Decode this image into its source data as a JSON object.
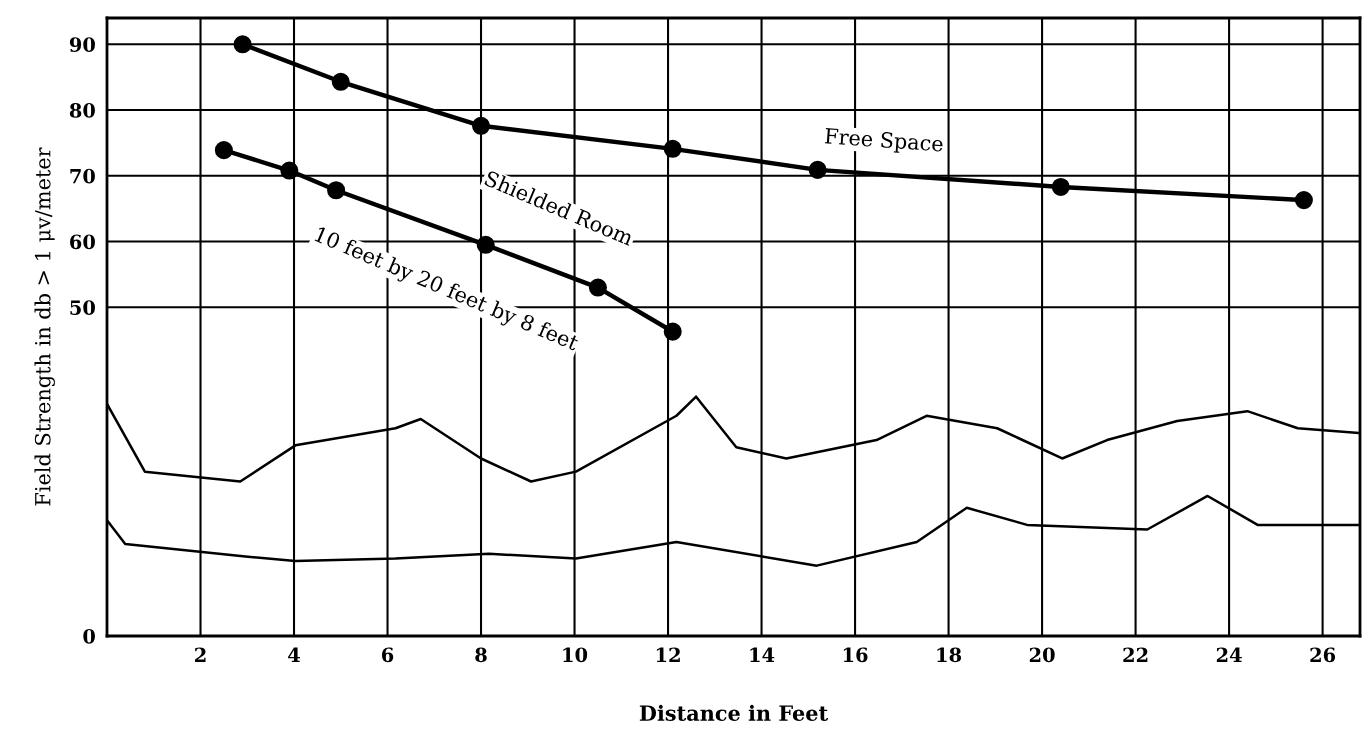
{
  "chart_data": {
    "type": "line",
    "xlabel": "Distance in Feet",
    "ylabel": "Field Strength in db > 1 μv/meter",
    "xlim": [
      0,
      26.8
    ],
    "xticks": [
      2,
      4,
      6,
      8,
      10,
      12,
      14,
      16,
      18,
      20,
      22,
      24,
      26
    ],
    "ylim": [
      0,
      94
    ],
    "yticks": [
      0,
      50,
      60,
      70,
      80,
      90
    ],
    "grid": true,
    "line_style": "solid",
    "series": [
      {
        "color": "#000000",
        "marker": "circle",
        "x": [
          2.9,
          5,
          8,
          12.1,
          15.2,
          20.4,
          25.6
        ],
        "values": [
          90,
          84.3,
          77.6,
          74.1,
          70.9,
          68.3,
          66.3
        ]
      },
      {
        "color": "#000000",
        "marker": "circle",
        "x": [
          2.5,
          3.9,
          4.9,
          8.1,
          10.5,
          12.1
        ],
        "values": [
          73.9,
          70.8,
          67.8,
          59.5,
          53.0,
          46.3
        ]
      },
      {
        "color": "#000000",
        "marker": "none",
        "x": [
          0,
          0.81,
          2.85,
          4.03,
          6.17,
          6.71,
          8.0,
          9.07,
          10.03,
          12.18,
          12.6,
          13.46,
          14.53,
          16.46,
          17.53,
          19.04,
          20.43,
          21.39,
          22.89,
          24.39,
          25.47,
          26.75
        ],
        "values": [
          35.3,
          25,
          23.5,
          29,
          31.6,
          33,
          27,
          23.5,
          25,
          33.5,
          36.4,
          28.7,
          27,
          29.8,
          33.5,
          31.6,
          27,
          29.8,
          32.7,
          34.2,
          31.6,
          30.9
        ]
      },
      {
        "color": "#000000",
        "marker": "none",
        "x": [
          0,
          0.39,
          2.96,
          4.03,
          6.17,
          8.17,
          10.03,
          12.18,
          15.18,
          17.32,
          18.39,
          19.68,
          22.25,
          23.54,
          24.61,
          26.75
        ],
        "values": [
          17.6,
          14,
          12.1,
          11.4,
          11.8,
          12.5,
          11.8,
          14.3,
          10.7,
          14.3,
          19.5,
          16.9,
          16.2,
          21.3,
          16.9,
          16.9
        ]
      }
    ],
    "annotations": [
      "Free Space",
      "Shielded Room",
      "10 feet by 20 feet by 8 feet"
    ]
  }
}
